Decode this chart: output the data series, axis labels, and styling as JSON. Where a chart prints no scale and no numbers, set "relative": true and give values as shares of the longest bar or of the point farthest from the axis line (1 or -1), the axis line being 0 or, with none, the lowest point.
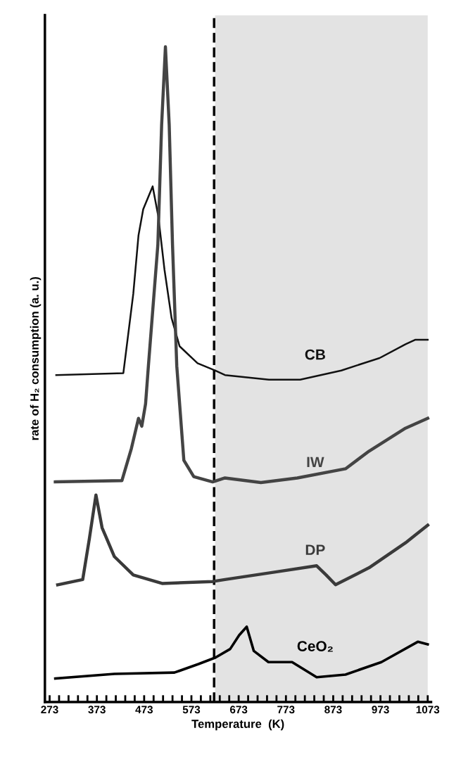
{
  "chart_data": {
    "type": "line",
    "relative": true,
    "xlabel": "Temperature  (K)",
    "ylabel": "rate of H₂ consumption (a. u.)",
    "xlim": [
      263,
      1080
    ],
    "xticks": [
      273,
      {
        "value": 293,
        "label": null
      },
      {
        "value": 313,
        "label": null
      },
      {
        "value": 333,
        "label": null
      },
      {
        "value": 353,
        "label": null
      },
      373,
      {
        "value": 393,
        "label": null
      },
      {
        "value": 413,
        "label": null
      },
      {
        "value": 433,
        "label": null
      },
      {
        "value": 453,
        "label": null
      },
      473,
      {
        "value": 493,
        "label": null
      },
      {
        "value": 513,
        "label": null
      },
      {
        "value": 533,
        "label": null
      },
      {
        "value": 553,
        "label": null
      },
      573,
      {
        "value": 593,
        "label": null
      },
      {
        "value": 613,
        "label": null
      },
      {
        "value": 633,
        "label": null
      },
      {
        "value": 653,
        "label": null
      },
      673,
      {
        "value": 693,
        "label": null
      },
      {
        "value": 713,
        "label": null
      },
      {
        "value": 733,
        "label": null
      },
      {
        "value": 753,
        "label": null
      },
      773,
      {
        "value": 793,
        "label": null
      },
      {
        "value": 813,
        "label": null
      },
      {
        "value": 833,
        "label": null
      },
      {
        "value": 853,
        "label": null
      },
      873,
      {
        "value": 893,
        "label": null
      },
      {
        "value": 913,
        "label": null
      },
      {
        "value": 933,
        "label": null
      },
      {
        "value": 953,
        "label": null
      },
      973,
      {
        "value": 993,
        "label": null
      },
      {
        "value": 1013,
        "label": null
      },
      {
        "value": 1033,
        "label": null
      },
      {
        "value": 1053,
        "label": null
      },
      1073
    ],
    "grid": false,
    "legend": false,
    "marker": "none",
    "line_style": "solid",
    "series": [
      {
        "name": "CB",
        "color": "#111111",
        "x": [
          287,
          429,
          450,
          461,
          471,
          491,
          503,
          516,
          531,
          548,
          586,
          623,
          644,
          737,
          803,
          890,
          971,
          1026,
          1047,
          1073
        ],
        "values": [
          0.499,
          0.502,
          0.623,
          0.712,
          0.752,
          0.787,
          0.741,
          0.66,
          0.586,
          0.543,
          0.517,
          0.506,
          0.499,
          0.492,
          0.492,
          0.506,
          0.525,
          0.546,
          0.553,
          0.553
        ]
      },
      {
        "name": "IW",
        "color": "#444444",
        "x": [
          285,
          426,
          446,
          461,
          468,
          476,
          482,
          502,
          510,
          518,
          526,
          533,
          542,
          557,
          578,
          618,
          644,
          720,
          797,
          899,
          949,
          1026,
          1073
        ],
        "values": [
          0.336,
          0.338,
          0.387,
          0.433,
          0.421,
          0.455,
          0.513,
          0.698,
          0.881,
          1.0,
          0.881,
          0.698,
          0.513,
          0.369,
          0.344,
          0.336,
          0.342,
          0.335,
          0.342,
          0.356,
          0.383,
          0.418,
          0.433
        ]
      },
      {
        "name": "DP",
        "color": "#3a3a3a",
        "x": [
          290,
          343,
          357,
          371,
          384,
          410,
          450,
          511,
          618,
          644,
          746,
          838,
          858,
          878,
          949,
          1026,
          1073
        ],
        "values": [
          0.179,
          0.187,
          0.249,
          0.316,
          0.266,
          0.222,
          0.194,
          0.181,
          0.184,
          0.187,
          0.198,
          0.208,
          0.194,
          0.179,
          0.205,
          0.243,
          0.27
        ]
      },
      {
        "name": "CeO₂",
        "color": "#000000",
        "x": [
          285,
          410,
          537,
          588,
          624,
          655,
          674,
          690,
          705,
          736,
          786,
          838,
          899,
          975,
          1052,
          1073
        ],
        "values": [
          0.036,
          0.043,
          0.045,
          0.058,
          0.068,
          0.081,
          0.102,
          0.115,
          0.078,
          0.061,
          0.061,
          0.038,
          0.042,
          0.061,
          0.092,
          0.088
        ]
      }
    ],
    "ref_lines": [
      {
        "axis": "x",
        "value": 621,
        "color": "#000000",
        "line_style": "dashed"
      }
    ],
    "bands": [
      {
        "axis": "x",
        "from": 623,
        "to": 1073,
        "color": "#e3e3e3"
      }
    ]
  }
}
